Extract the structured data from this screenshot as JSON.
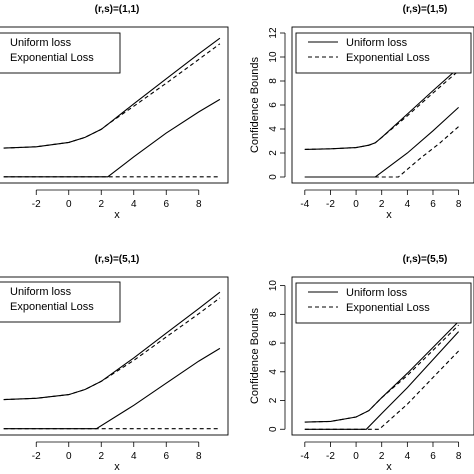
{
  "chart_data": [
    {
      "type": "line",
      "title": "(r,s)=(1,1)",
      "xlabel": "x",
      "ylabel": "",
      "xticks": [
        "-2",
        "0",
        "2",
        "4",
        "6",
        "8"
      ],
      "yticks": [],
      "legend": {
        "position": "top-left",
        "entries": [
          "Uniform loss",
          "Exponential Loss"
        ]
      },
      "series": [
        {
          "name": "Uniform loss",
          "style": "solid",
          "band": "upper",
          "x": [
            -4,
            -2,
            0,
            1,
            2,
            2.5,
            4,
            6,
            8,
            9.3
          ],
          "y": [
            2.3,
            2.4,
            2.75,
            3.15,
            3.8,
            4.3,
            5.85,
            7.85,
            9.85,
            11.1
          ]
        },
        {
          "name": "Exponential Loss",
          "style": "dashed",
          "band": "upper",
          "x": [
            -4,
            -2,
            0,
            1,
            2,
            2.5,
            4,
            6,
            8,
            9.3
          ],
          "y": [
            2.3,
            2.4,
            2.75,
            3.15,
            3.8,
            4.3,
            5.65,
            7.5,
            9.4,
            10.65
          ]
        },
        {
          "name": "Uniform loss",
          "style": "solid",
          "band": "lower",
          "x": [
            -4,
            2.4,
            4,
            6,
            8,
            9.3
          ],
          "y": [
            0,
            0,
            1.6,
            3.5,
            5.2,
            6.2
          ]
        },
        {
          "name": "Exponential Loss",
          "style": "dashed",
          "band": "lower",
          "x": [
            -4,
            9.3
          ],
          "y": [
            0,
            0
          ]
        }
      ],
      "xlim": [
        -4.6,
        9.8
      ],
      "ylim": [
        -0.5,
        12.0
      ]
    },
    {
      "type": "line",
      "title": "(r,s)=(1,5)",
      "xlabel": "x",
      "ylabel": "Confidence Bounds",
      "xticks": [
        "-4",
        "-2",
        "0",
        "2",
        "4",
        "6",
        "8"
      ],
      "yticks": [
        "0",
        "2",
        "4",
        "6",
        "8",
        "10",
        "12"
      ],
      "legend": {
        "position": "top-right",
        "entries": [
          "Uniform loss",
          "Exponential Loss"
        ]
      },
      "series": [
        {
          "name": "Uniform loss",
          "style": "solid",
          "band": "upper",
          "x": [
            -4,
            -2,
            0,
            1,
            1.5,
            2,
            4,
            6,
            8
          ],
          "y": [
            2.3,
            2.35,
            2.45,
            2.65,
            2.85,
            3.3,
            5.25,
            7.2,
            9.1
          ]
        },
        {
          "name": "Exponential Loss",
          "style": "dashed",
          "band": "upper",
          "x": [
            -4,
            -2,
            0,
            1,
            1.5,
            2,
            4,
            6,
            8
          ],
          "y": [
            2.3,
            2.35,
            2.45,
            2.65,
            2.85,
            3.3,
            5.1,
            7.0,
            8.85
          ]
        },
        {
          "name": "Uniform loss",
          "style": "solid",
          "band": "lower",
          "x": [
            -4,
            1.5,
            4,
            6,
            8
          ],
          "y": [
            0,
            0,
            2.0,
            3.85,
            5.8
          ]
        },
        {
          "name": "Exponential Loss",
          "style": "dashed",
          "band": "lower",
          "x": [
            -4,
            3.3,
            5,
            6.5,
            8
          ],
          "y": [
            0,
            0,
            1.55,
            2.8,
            4.2
          ]
        }
      ],
      "xlim": [
        -5,
        9.2
      ],
      "ylim": [
        -0.5,
        12.5
      ]
    },
    {
      "type": "line",
      "title": "(r,s)=(5,1)",
      "xlabel": "x",
      "ylabel": "",
      "xticks": [
        "-2",
        "0",
        "2",
        "4",
        "6",
        "8"
      ],
      "yticks": [],
      "legend": {
        "position": "top-left",
        "entries": [
          "Uniform loss",
          "Exponential Loss"
        ]
      },
      "series": [
        {
          "name": "Uniform loss",
          "style": "solid",
          "band": "upper",
          "x": [
            -4,
            -2,
            0,
            1,
            2,
            4,
            6,
            8,
            9.3
          ],
          "y": [
            2.3,
            2.4,
            2.7,
            3.1,
            3.75,
            5.6,
            7.55,
            9.5,
            10.8
          ]
        },
        {
          "name": "Exponential Loss",
          "style": "dashed",
          "band": "upper",
          "x": [
            -4,
            -2,
            0,
            1,
            2,
            4,
            6,
            8,
            9.3
          ],
          "y": [
            2.3,
            2.4,
            2.7,
            3.1,
            3.75,
            5.4,
            7.25,
            9.1,
            10.35
          ]
        },
        {
          "name": "Uniform loss",
          "style": "solid",
          "band": "lower",
          "x": [
            -4,
            1.7,
            4,
            6,
            8,
            9.3
          ],
          "y": [
            0,
            0,
            1.85,
            3.6,
            5.35,
            6.35
          ]
        },
        {
          "name": "Exponential Loss",
          "style": "dashed",
          "band": "lower",
          "x": [
            -4,
            9.3
          ],
          "y": [
            0,
            0
          ]
        }
      ],
      "xlim": [
        -4.6,
        9.8
      ],
      "ylim": [
        -0.5,
        12.0
      ]
    },
    {
      "type": "line",
      "title": "(r,s)=(5,5)",
      "xlabel": "x",
      "ylabel": "Confidence Bounds",
      "xticks": [
        "-4",
        "-2",
        "0",
        "2",
        "4",
        "6",
        "8"
      ],
      "yticks": [
        "0",
        "2",
        "4",
        "6",
        "8",
        "10"
      ],
      "legend": {
        "position": "top-right",
        "entries": [
          "Uniform loss",
          "Exponential Loss"
        ]
      },
      "series": [
        {
          "name": "Uniform loss",
          "style": "solid",
          "band": "upper",
          "x": [
            -4,
            -2,
            0,
            1,
            2,
            4,
            6,
            8
          ],
          "y": [
            0.5,
            0.55,
            0.85,
            1.3,
            2.2,
            3.9,
            5.7,
            7.5
          ]
        },
        {
          "name": "Exponential Loss",
          "style": "dashed",
          "band": "upper",
          "x": [
            -4,
            -2,
            0,
            1,
            2,
            4,
            6,
            8
          ],
          "y": [
            0.5,
            0.55,
            0.85,
            1.3,
            2.2,
            3.75,
            5.5,
            7.25
          ]
        },
        {
          "name": "Uniform loss",
          "style": "solid",
          "band": "lower",
          "x": [
            -4,
            0.8,
            2,
            4,
            6,
            8
          ],
          "y": [
            0,
            0,
            1.1,
            2.9,
            4.85,
            6.8
          ]
        },
        {
          "name": "Exponential Loss",
          "style": "dashed",
          "band": "lower",
          "x": [
            -4,
            1.8,
            4,
            6,
            8
          ],
          "y": [
            0,
            0,
            1.75,
            3.6,
            5.45
          ]
        }
      ],
      "xlim": [
        -5,
        9.2
      ],
      "ylim": [
        -0.4,
        10.6
      ]
    }
  ]
}
